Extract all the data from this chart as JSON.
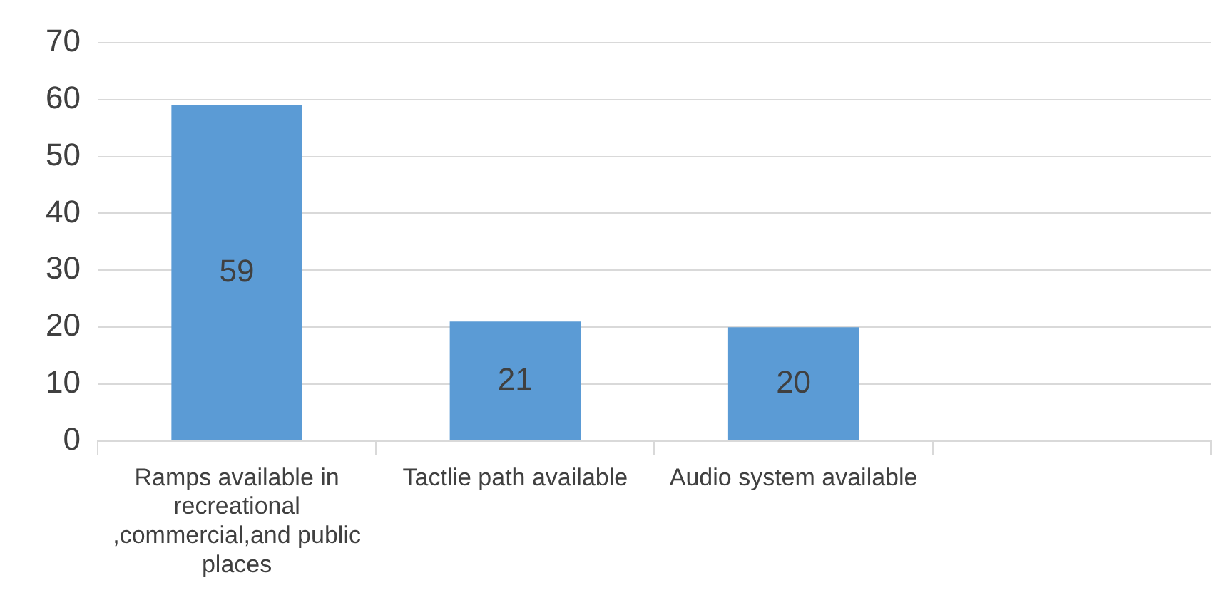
{
  "chart_data": {
    "type": "bar",
    "categories": [
      "Ramps available in recreational ,commercial,and public places",
      "Tactlie path available",
      "Audio system available",
      null
    ],
    "values": [
      59,
      21,
      20,
      null
    ],
    "color": "#5b9bd5",
    "ylim": [
      0,
      70
    ],
    "yticks": [
      0,
      10,
      20,
      30,
      40,
      50,
      60,
      70
    ],
    "grid": "y",
    "data_labels": true
  }
}
